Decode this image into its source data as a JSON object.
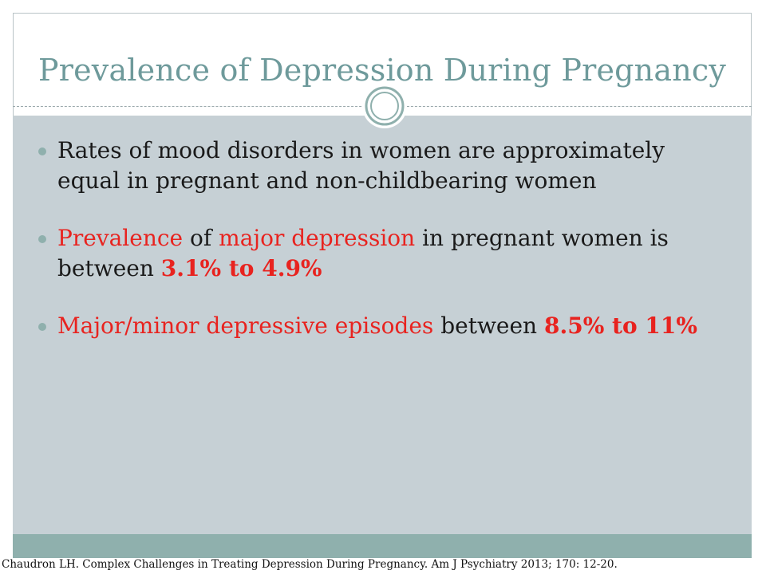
{
  "slide": {
    "title": "Prevalence of Depression During Pregnancy",
    "bullets": [
      {
        "segments": [
          {
            "text": "Rates of mood disorders in women are approximately equal in pregnant and non-childbearing women",
            "style": "normal"
          }
        ]
      },
      {
        "segments": [
          {
            "text": "Prevalence",
            "style": "red"
          },
          {
            "text": " of ",
            "style": "normal"
          },
          {
            "text": "major depression",
            "style": "red"
          },
          {
            "text": " in pregnant women is between ",
            "style": "normal"
          },
          {
            "text": "3.1% to 4.9%",
            "style": "red-bold"
          }
        ]
      },
      {
        "segments": [
          {
            "text": "Major/minor depressive episodes",
            "style": "red"
          },
          {
            "text": " between ",
            "style": "normal"
          },
          {
            "text": "8.5%  to 11%",
            "style": "red-bold"
          }
        ]
      }
    ],
    "citation": "Chaudron LH. Complex Challenges in Treating Depression During Pregnancy. Am J Psychiatry 2013; 170: 12-20."
  },
  "colors": {
    "title": "#6e9a9b",
    "panel": "#c6d0d5",
    "accent": "#8fb0ad",
    "highlight": "#e8231f"
  },
  "icons": {
    "ornament": "double-circle-ornament",
    "bullet": "round-bullet-icon"
  }
}
